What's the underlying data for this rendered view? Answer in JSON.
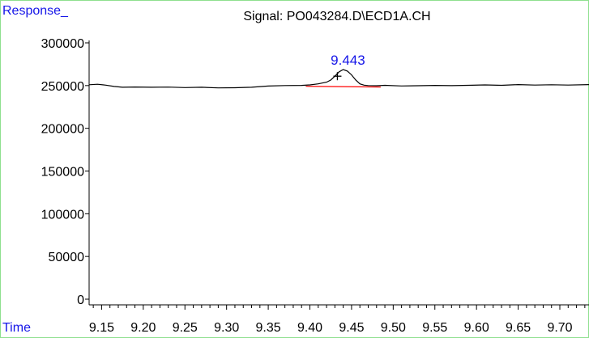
{
  "chart_data": {
    "type": "line",
    "title": "Signal: PO043284.D\\ECD1A.CH",
    "ylabel": "Response_",
    "xlabel": "Time",
    "xlim": [
      9.135,
      9.735
    ],
    "ylim": [
      0,
      330000
    ],
    "y_ticks": [
      0,
      50000,
      100000,
      150000,
      200000,
      250000,
      300000
    ],
    "y_tick_labels": [
      "0",
      "50000",
      "100000",
      "150000",
      "200000",
      "250000",
      "300000"
    ],
    "x_tick_labels": [
      "9.15",
      "9.20",
      "9.25",
      "9.30",
      "9.35",
      "9.40",
      "9.45",
      "9.50",
      "9.55",
      "9.60",
      "9.65",
      "9.70"
    ],
    "x_ticks": [
      9.15,
      9.2,
      9.25,
      9.3,
      9.35,
      9.4,
      9.45,
      9.5,
      9.55,
      9.6,
      9.65,
      9.7
    ],
    "x_minor_step": 0.01,
    "series": [
      {
        "color": "#000000",
        "x": [
          9.135,
          9.145,
          9.155,
          9.165,
          9.175,
          9.19,
          9.21,
          9.23,
          9.25,
          9.27,
          9.29,
          9.31,
          9.33,
          9.35,
          9.37,
          9.39,
          9.4,
          9.41,
          9.42,
          9.425,
          9.43,
          9.435,
          9.44,
          9.445,
          9.45,
          9.455,
          9.46,
          9.465,
          9.47,
          9.48,
          9.49,
          9.51,
          9.53,
          9.55,
          9.57,
          9.59,
          9.61,
          9.63,
          9.65,
          9.67,
          9.69,
          9.71,
          9.735
        ],
        "y": [
          251000,
          251500,
          250500,
          249000,
          248000,
          248300,
          248000,
          248200,
          247700,
          248000,
          247300,
          247500,
          248000,
          249500,
          250000,
          250200,
          250800,
          252000,
          254000,
          256500,
          261000,
          266000,
          268800,
          267000,
          262500,
          256500,
          252000,
          250500,
          250000,
          249800,
          250300,
          249600,
          249800,
          250200,
          249900,
          250300,
          250800,
          250300,
          251200,
          250600,
          251000,
          250600,
          251200
        ]
      }
    ],
    "baseline": {
      "color": "#ff0000",
      "x": [
        9.395,
        9.485
      ],
      "y": [
        249200,
        248300
      ]
    },
    "peak": {
      "label": "9.443",
      "label_color": "#1515e8",
      "marker": "+",
      "x": 9.433,
      "y": 261000
    },
    "grid": false,
    "legend": "none"
  }
}
